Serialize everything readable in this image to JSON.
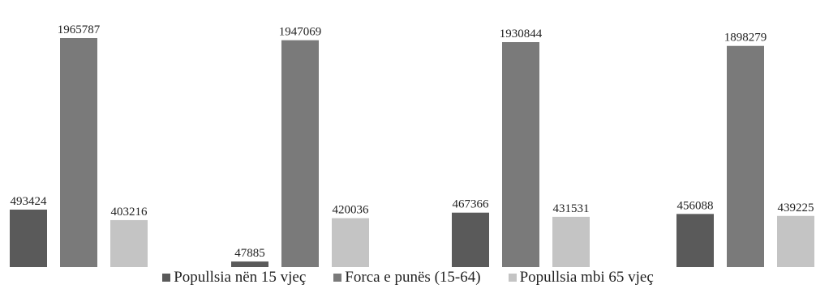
{
  "chart_data": {
    "type": "bar",
    "categories": [
      "",
      "",
      "",
      ""
    ],
    "series": [
      {
        "name": "Popullsia nën 15 vjeç",
        "color": "#5a5a5a",
        "values": [
          493424,
          47885,
          467366,
          456088
        ]
      },
      {
        "name": "Forca e punës (15-64)",
        "color": "#7a7a7a",
        "values": [
          1965787,
          1947069,
          1930844,
          1898279
        ]
      },
      {
        "name": "Popullsia mbi 65 vjeç",
        "color": "#c4c4c4",
        "values": [
          403216,
          420036,
          431531,
          439225
        ]
      }
    ],
    "data_labels": [
      [
        "493424",
        "47885",
        "467366",
        "456088"
      ],
      [
        "1965787",
        "1947069",
        "1930844",
        "1898279"
      ],
      [
        "403216",
        "420036",
        "431531",
        "439225"
      ]
    ],
    "title": "",
    "xlabel": "",
    "ylabel": "",
    "ylim": [
      0,
      2000000
    ],
    "grid": false,
    "legend_position": "bottom"
  }
}
